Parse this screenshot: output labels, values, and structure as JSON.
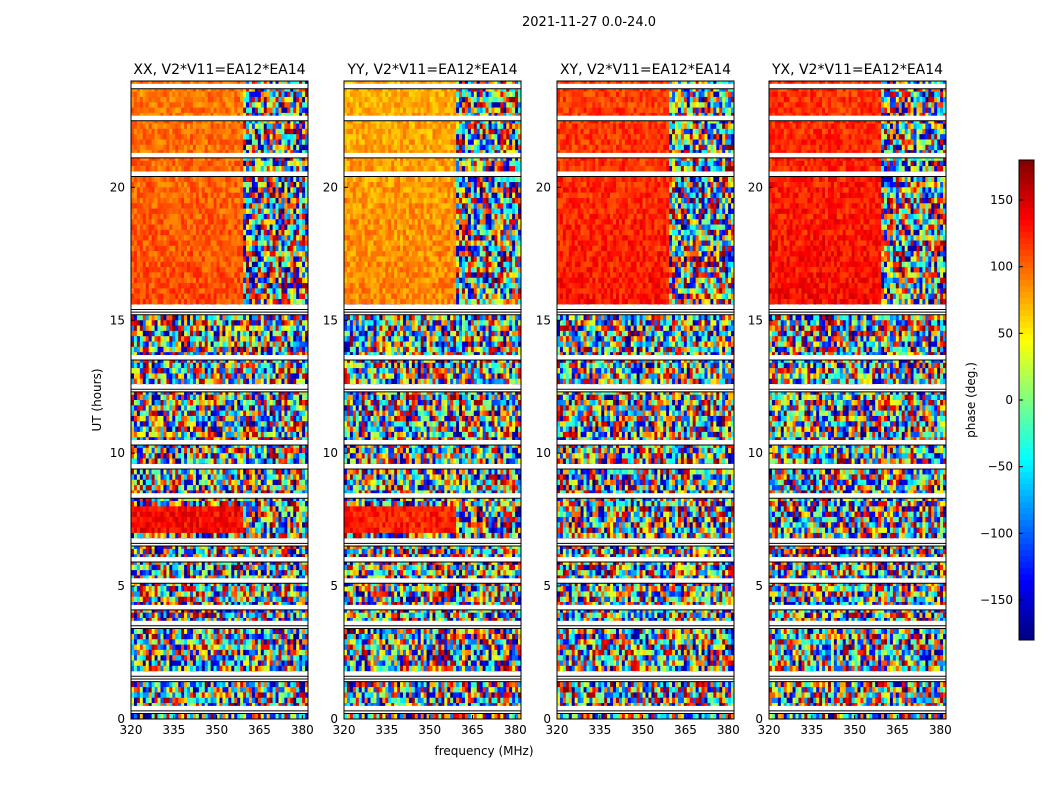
{
  "chart_data": {
    "type": "heatmap",
    "suptitle": "2021-11-27 0.0-24.0",
    "xlabel": "frequency (MHz)",
    "ylabel": "UT (hours)",
    "xlim": [
      320,
      382
    ],
    "ylim": [
      0,
      24
    ],
    "xticks": [
      320,
      335,
      350,
      365,
      380
    ],
    "yticks": [
      0,
      5,
      10,
      15,
      20
    ],
    "colorbar": {
      "label": "phase (deg.)",
      "range": [
        -180,
        180
      ],
      "ticks": [
        150,
        100,
        50,
        0,
        -50,
        -100,
        -150
      ],
      "tick_labels": [
        "150",
        "100",
        "50",
        "0",
        "−50",
        "−100",
        "−150"
      ],
      "colormap": "jet"
    },
    "panels": [
      {
        "title": "XX, V2*V11=EA12*EA14",
        "coherent_bands": [
          {
            "from": 15.6,
            "to": 24,
            "phase_deg": 140
          },
          {
            "from": 7.0,
            "to": 8.0,
            "phase_deg": 150
          }
        ]
      },
      {
        "title": "YY, V2*V11=EA12*EA14",
        "coherent_bands": [
          {
            "from": 15.6,
            "to": 24,
            "phase_deg": 120
          },
          {
            "from": 7.0,
            "to": 8.0,
            "phase_deg": 140
          }
        ]
      },
      {
        "title": "XY, V2*V11=EA12*EA14",
        "coherent_bands": [
          {
            "from": 15.6,
            "to": 24,
            "phase_deg": 160
          }
        ]
      },
      {
        "title": "YX, V2*V11=EA12*EA14",
        "coherent_bands": [
          {
            "from": 15.6,
            "to": 24,
            "phase_deg": 165
          }
        ]
      }
    ],
    "flagged_hours": [
      0.3,
      0.4,
      1.5,
      1.6,
      1.7,
      3.5,
      3.6,
      4.2,
      5.2,
      6.0,
      6.6,
      6.7,
      8.4,
      9.5,
      10.4,
      12.4,
      12.5,
      13.6,
      15.3,
      15.4,
      15.5,
      20.5,
      21.2,
      22.6,
      23.8
    ]
  }
}
